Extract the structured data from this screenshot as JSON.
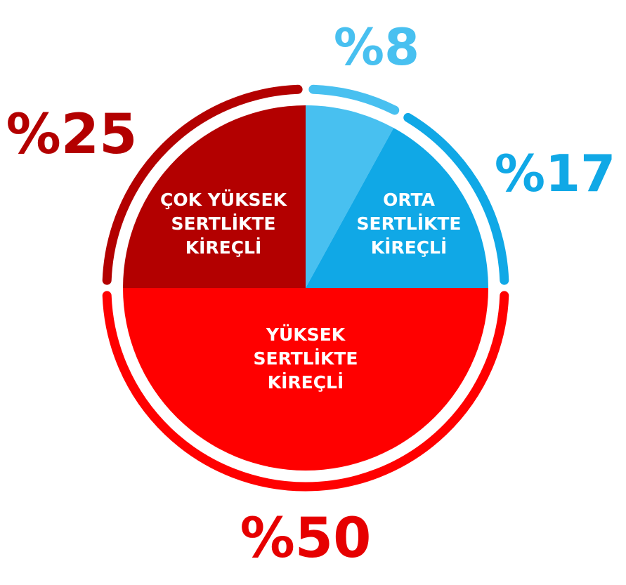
{
  "chart_data": {
    "type": "pie",
    "title": "",
    "slices": [
      {
        "label_lines": [
          "YÜKSEK",
          "SERTLİKTE",
          "KİREÇLİ"
        ],
        "value": 50,
        "value_label": "%50",
        "color": "#ff0000",
        "label_color": "#e60000"
      },
      {
        "label_lines": [
          "ÇOK YÜKSEK",
          "SERTLİKTE",
          "KİREÇLİ"
        ],
        "value": 25,
        "value_label": "%25",
        "color": "#b30000",
        "label_color": "#b30000"
      },
      {
        "label_lines": [],
        "value": 8,
        "value_label": "%8",
        "color": "#48c0f0",
        "label_color": "#48c0f0"
      },
      {
        "label_lines": [
          "ORTA",
          "SERTLİKTE",
          "KİREÇLİ"
        ],
        "value": 17,
        "value_label": "%17",
        "color": "#10a8e6",
        "label_color": "#10a8e6"
      }
    ]
  }
}
